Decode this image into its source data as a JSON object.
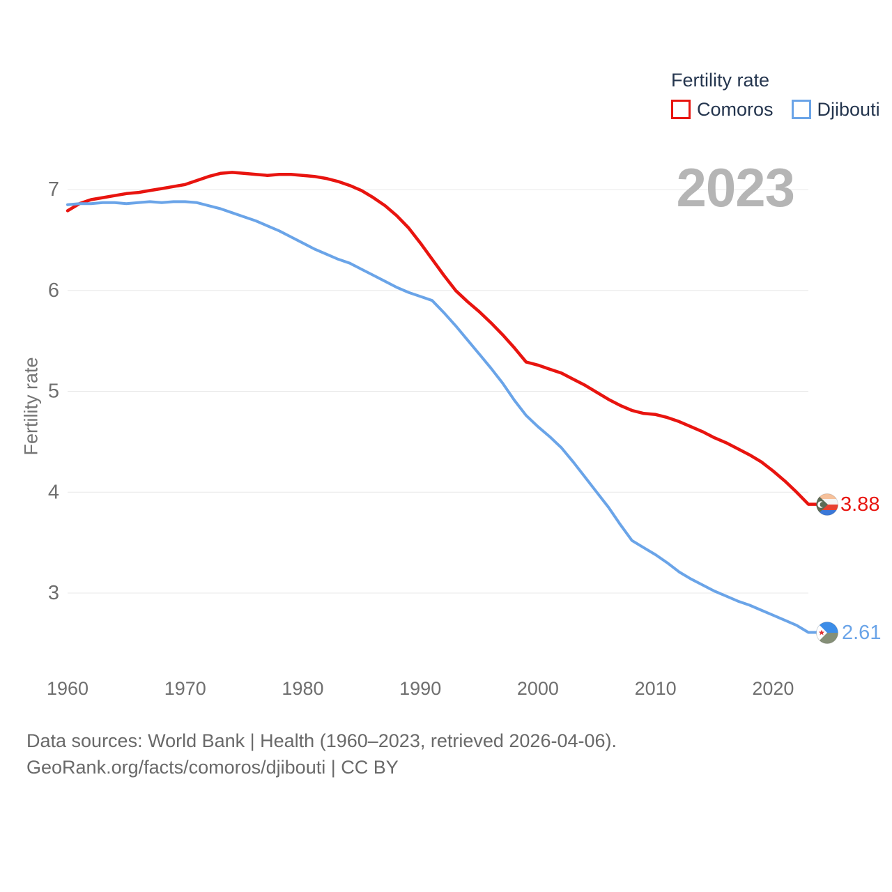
{
  "watermark": {
    "text": "2023",
    "color": "#b5b5b5"
  },
  "legend": {
    "title": "Fertility rate",
    "items": [
      {
        "label": "Comoros",
        "color": "#e8140f"
      },
      {
        "label": "Djibouti",
        "color": "#6aa4e8"
      }
    ]
  },
  "axes": {
    "y_label": "Fertility rate",
    "y_ticks": [
      7,
      6,
      5,
      4,
      3
    ],
    "x_ticks": [
      1960,
      1970,
      1980,
      1990,
      2000,
      2010,
      2020
    ]
  },
  "end_labels": {
    "comoros": {
      "series": "Comoros",
      "value": "3.88",
      "color": "#e8140f",
      "flag_icon": "comoros-flag-icon"
    },
    "djibouti": {
      "series": "Djibouti",
      "value": "2.61",
      "color": "#6aa4e8",
      "flag_icon": "djibouti-flag-icon"
    }
  },
  "footer": {
    "line1": "Data sources: World Bank | Health (1960–2023, retrieved 2026-04-06).",
    "line2": "GeoRank.org/facts/comoros/djibouti | CC BY"
  },
  "chart_data": {
    "type": "line",
    "title": "Fertility rate",
    "xlabel": "",
    "ylabel": "Fertility rate",
    "xlim": [
      1960,
      2023
    ],
    "ylim": [
      2.4,
      7.3
    ],
    "grid": true,
    "legend_position": "top-right",
    "gridline_color": "#e8e8e8",
    "tick_color": "#6f6f6f",
    "x": [
      1960,
      1961,
      1962,
      1963,
      1964,
      1965,
      1966,
      1967,
      1968,
      1969,
      1970,
      1971,
      1972,
      1973,
      1974,
      1975,
      1976,
      1977,
      1978,
      1979,
      1980,
      1981,
      1982,
      1983,
      1984,
      1985,
      1986,
      1987,
      1988,
      1989,
      1990,
      1991,
      1992,
      1993,
      1994,
      1995,
      1996,
      1997,
      1998,
      1999,
      2000,
      2001,
      2002,
      2003,
      2004,
      2005,
      2006,
      2007,
      2008,
      2009,
      2010,
      2011,
      2012,
      2013,
      2014,
      2015,
      2016,
      2017,
      2018,
      2019,
      2020,
      2021,
      2022,
      2023
    ],
    "series": [
      {
        "name": "Comoros",
        "color": "#e8140f",
        "stroke_width": 4.5,
        "values": [
          6.79,
          6.86,
          6.9,
          6.92,
          6.94,
          6.96,
          6.97,
          6.99,
          7.01,
          7.03,
          7.05,
          7.09,
          7.13,
          7.16,
          7.17,
          7.16,
          7.15,
          7.14,
          7.15,
          7.15,
          7.14,
          7.13,
          7.11,
          7.08,
          7.04,
          6.99,
          6.92,
          6.84,
          6.74,
          6.62,
          6.47,
          6.31,
          6.15,
          6.0,
          5.89,
          5.79,
          5.68,
          5.56,
          5.43,
          5.29,
          5.26,
          5.22,
          5.18,
          5.12,
          5.06,
          4.99,
          4.92,
          4.86,
          4.81,
          4.78,
          4.77,
          4.74,
          4.7,
          4.65,
          4.6,
          4.54,
          4.49,
          4.43,
          4.37,
          4.3,
          4.21,
          4.11,
          4.0,
          3.88
        ]
      },
      {
        "name": "Djibouti",
        "color": "#6aa4e8",
        "stroke_width": 4,
        "values": [
          6.85,
          6.86,
          6.86,
          6.87,
          6.87,
          6.86,
          6.87,
          6.88,
          6.87,
          6.88,
          6.88,
          6.87,
          6.84,
          6.81,
          6.77,
          6.73,
          6.69,
          6.64,
          6.59,
          6.53,
          6.47,
          6.41,
          6.36,
          6.31,
          6.27,
          6.21,
          6.15,
          6.09,
          6.03,
          5.98,
          5.94,
          5.9,
          5.78,
          5.65,
          5.51,
          5.37,
          5.23,
          5.08,
          4.91,
          4.76,
          4.65,
          4.55,
          4.44,
          4.3,
          4.15,
          4.0,
          3.85,
          3.68,
          3.52,
          3.45,
          3.38,
          3.3,
          3.21,
          3.14,
          3.08,
          3.02,
          2.97,
          2.92,
          2.88,
          2.83,
          2.78,
          2.73,
          2.68,
          2.61
        ]
      }
    ],
    "end_value_labels": {
      "Comoros": 3.88,
      "Djibouti": 2.61
    }
  }
}
